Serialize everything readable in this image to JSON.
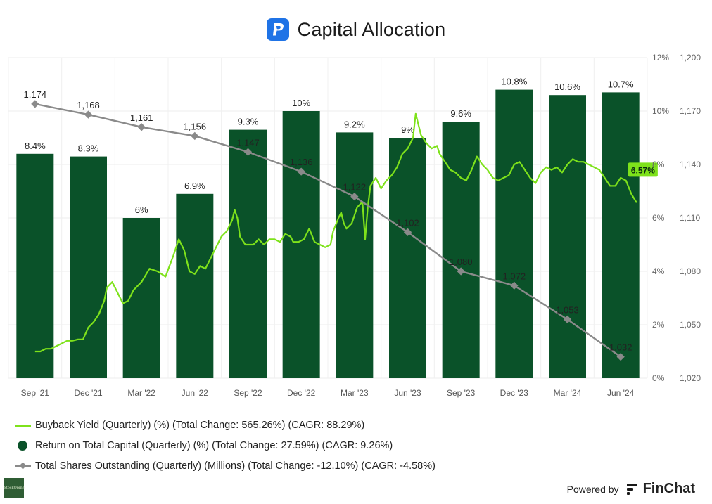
{
  "header": {
    "title": "Capital Allocation",
    "logo_icon": "paypal-icon"
  },
  "chart_data": {
    "type": "bar+line",
    "title": "Capital Allocation",
    "categories": [
      "Sep '21",
      "Dec '21",
      "Mar '22",
      "Jun '22",
      "Sep '22",
      "Dec '22",
      "Mar '23",
      "Jun '23",
      "Sep '23",
      "Dec '23",
      "Mar '24",
      "Jun '24"
    ],
    "y_left": {
      "ticks": [
        "12%",
        "10%",
        "8%",
        "6%",
        "4%",
        "2%",
        "0%"
      ],
      "range": [
        0,
        12
      ]
    },
    "y_right": {
      "ticks": [
        "1,200",
        "1,170",
        "1,140",
        "1,110",
        "1,080",
        "1,050",
        "1,020"
      ],
      "range": [
        1020,
        1200
      ]
    },
    "grid": true,
    "series": [
      {
        "name": "Return on Total Capital (Quarterly) (%)",
        "kind": "bar",
        "axis": "left",
        "color": "#0a5229",
        "values": [
          8.4,
          8.3,
          6.0,
          6.9,
          9.3,
          10.0,
          9.2,
          9.0,
          9.6,
          10.8,
          10.6,
          10.7
        ],
        "labels": [
          "8.4%",
          "8.3%",
          "6%",
          "6.9%",
          "9.3%",
          "10%",
          "9.2%",
          "9%",
          "9.6%",
          "10.8%",
          "10.6%",
          "10.7%"
        ]
      },
      {
        "name": "Total Shares Outstanding (Quarterly) (Millions)",
        "kind": "line",
        "axis": "right",
        "color": "#8a8a8a",
        "marker": "diamond",
        "values": [
          1174,
          1168,
          1161,
          1156,
          1147,
          1136,
          1122,
          1102,
          1080,
          1072,
          1053,
          1032
        ],
        "labels": [
          "1,174",
          "1,168",
          "1,161",
          "1,156",
          "1,147",
          "1,136",
          "1,122",
          "1,102",
          "1,080",
          "1,072",
          "1,053",
          "1,032"
        ]
      },
      {
        "name": "Buyback Yield (Quarterly) (%)",
        "kind": "line",
        "axis": "left",
        "color": "#7ee21b",
        "last_label": "6.57%",
        "points": [
          [
            0.0,
            1.0
          ],
          [
            0.1,
            1.0
          ],
          [
            0.2,
            1.1
          ],
          [
            0.3,
            1.1
          ],
          [
            0.4,
            1.2
          ],
          [
            0.5,
            1.3
          ],
          [
            0.6,
            1.4
          ],
          [
            0.7,
            1.4
          ],
          [
            0.8,
            1.45
          ],
          [
            0.9,
            1.45
          ],
          [
            1.0,
            1.9
          ],
          [
            1.1,
            2.1
          ],
          [
            1.2,
            2.4
          ],
          [
            1.3,
            2.9
          ],
          [
            1.35,
            3.4
          ],
          [
            1.45,
            3.6
          ],
          [
            1.55,
            3.2
          ],
          [
            1.65,
            2.8
          ],
          [
            1.75,
            2.9
          ],
          [
            1.85,
            3.3
          ],
          [
            2.0,
            3.6
          ],
          [
            2.15,
            4.1
          ],
          [
            2.3,
            4.0
          ],
          [
            2.45,
            3.8
          ],
          [
            2.6,
            4.6
          ],
          [
            2.7,
            5.2
          ],
          [
            2.8,
            4.8
          ],
          [
            2.9,
            4.0
          ],
          [
            3.0,
            3.9
          ],
          [
            3.1,
            4.2
          ],
          [
            3.2,
            4.1
          ],
          [
            3.3,
            4.5
          ],
          [
            3.4,
            4.9
          ],
          [
            3.5,
            5.3
          ],
          [
            3.6,
            5.5
          ],
          [
            3.7,
            5.9
          ],
          [
            3.75,
            6.3
          ],
          [
            3.8,
            6.0
          ],
          [
            3.85,
            5.3
          ],
          [
            3.95,
            5.0
          ],
          [
            4.1,
            5.0
          ],
          [
            4.2,
            5.2
          ],
          [
            4.3,
            5.0
          ],
          [
            4.4,
            5.2
          ],
          [
            4.5,
            5.2
          ],
          [
            4.6,
            5.1
          ],
          [
            4.7,
            5.4
          ],
          [
            4.8,
            5.3
          ],
          [
            4.85,
            5.1
          ],
          [
            4.95,
            5.1
          ],
          [
            5.05,
            5.2
          ],
          [
            5.15,
            5.6
          ],
          [
            5.25,
            5.1
          ],
          [
            5.35,
            5.0
          ],
          [
            5.45,
            4.9
          ],
          [
            5.55,
            5.0
          ],
          [
            5.6,
            5.5
          ],
          [
            5.7,
            6.0
          ],
          [
            5.75,
            6.2
          ],
          [
            5.8,
            5.8
          ],
          [
            5.85,
            5.6
          ],
          [
            5.95,
            5.8
          ],
          [
            6.05,
            6.4
          ],
          [
            6.15,
            6.6
          ],
          [
            6.2,
            5.2
          ],
          [
            6.25,
            6.4
          ],
          [
            6.3,
            7.2
          ],
          [
            6.4,
            7.5
          ],
          [
            6.5,
            7.1
          ],
          [
            6.6,
            7.4
          ],
          [
            6.7,
            7.6
          ],
          [
            6.8,
            7.9
          ],
          [
            6.9,
            8.4
          ],
          [
            7.0,
            8.6
          ],
          [
            7.1,
            9.0
          ],
          [
            7.15,
            9.9
          ],
          [
            7.25,
            9.1
          ],
          [
            7.35,
            8.8
          ],
          [
            7.45,
            8.6
          ],
          [
            7.55,
            8.7
          ],
          [
            7.6,
            8.4
          ],
          [
            7.7,
            8.1
          ],
          [
            7.8,
            7.8
          ],
          [
            7.9,
            7.7
          ],
          [
            8.0,
            7.5
          ],
          [
            8.1,
            7.4
          ],
          [
            8.2,
            7.8
          ],
          [
            8.3,
            8.3
          ],
          [
            8.4,
            8.0
          ],
          [
            8.5,
            7.8
          ],
          [
            8.6,
            7.5
          ],
          [
            8.7,
            7.4
          ],
          [
            8.8,
            7.5
          ],
          [
            8.9,
            7.6
          ],
          [
            9.0,
            8.0
          ],
          [
            9.1,
            8.1
          ],
          [
            9.2,
            7.8
          ],
          [
            9.3,
            7.5
          ],
          [
            9.4,
            7.3
          ],
          [
            9.5,
            7.7
          ],
          [
            9.6,
            7.9
          ],
          [
            9.7,
            7.8
          ],
          [
            9.8,
            7.9
          ],
          [
            9.9,
            7.7
          ],
          [
            10.0,
            8.0
          ],
          [
            10.1,
            8.2
          ],
          [
            10.2,
            8.1
          ],
          [
            10.3,
            8.1
          ],
          [
            10.4,
            8.0
          ],
          [
            10.5,
            7.9
          ],
          [
            10.6,
            7.8
          ],
          [
            10.7,
            7.5
          ],
          [
            10.8,
            7.2
          ],
          [
            10.9,
            7.2
          ],
          [
            11.0,
            7.5
          ],
          [
            11.1,
            7.4
          ],
          [
            11.2,
            6.9
          ],
          [
            11.3,
            6.57
          ]
        ]
      }
    ]
  },
  "legend": {
    "items": [
      {
        "label": "Buyback Yield (Quarterly) (%) (Total Change: 565.26%) (CAGR: 88.29%)",
        "color": "#7ee21b",
        "icon": "line-swatch"
      },
      {
        "label": "Return on Total Capital (Quarterly) (%) (Total Change: 27.59%) (CAGR: 9.26%)",
        "color": "#0a5229",
        "icon": "circle-swatch"
      },
      {
        "label": "Total Shares Outstanding (Quarterly) (Millions) (Total Change: -12.10%) (CAGR: -4.58%)",
        "color": "#8a8a8a",
        "icon": "line-diamond-swatch"
      }
    ]
  },
  "footer": {
    "powered_by": "Powered by",
    "brand": "FinChat",
    "brand_icon": "finchat-logo-icon",
    "watermark_text": "StockOpine"
  }
}
